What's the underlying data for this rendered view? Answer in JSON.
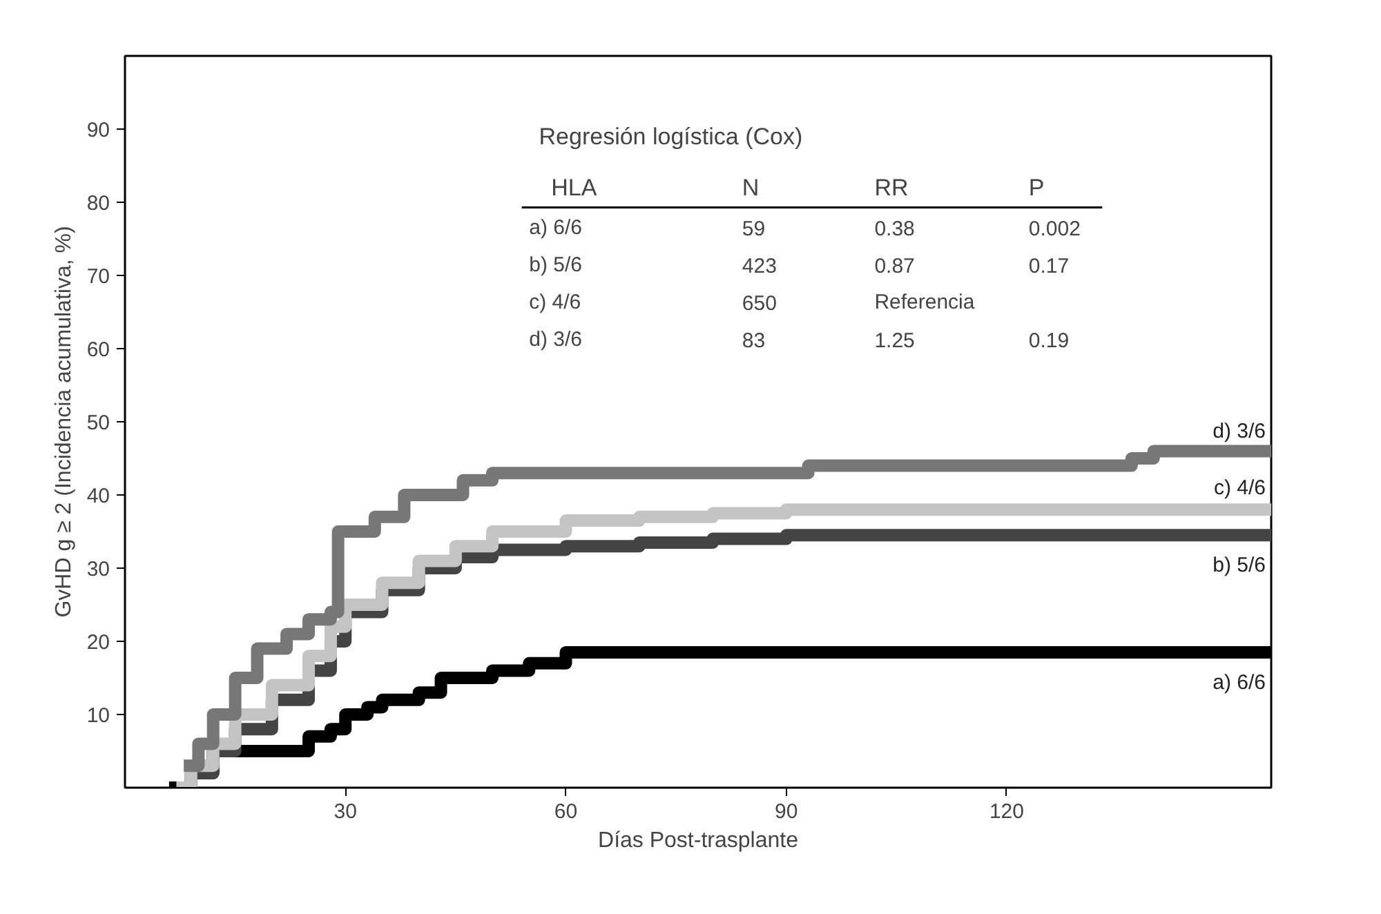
{
  "chart_data": {
    "type": "step",
    "xlabel": "Días Post-trasplante",
    "ylabel": "GvHD g ≥ 2 (Incidencia acumulativa, %)",
    "xlim": [
      0,
      156
    ],
    "ylim": [
      0,
      100
    ],
    "xticks": [
      30,
      60,
      90,
      120
    ],
    "yticks": [
      10,
      20,
      30,
      40,
      50,
      60,
      70,
      80,
      90
    ],
    "grid": false,
    "line_style": "solid",
    "marker": "none",
    "annotations": [
      "Regresión logística (Cox)",
      "HLA",
      "N",
      "RR",
      "P",
      "a) 6/6",
      "59",
      "0.38",
      "0.002",
      "b) 5/6",
      "423",
      "0.87",
      "0.17",
      "c) 4/6",
      "650",
      "Referencia",
      "d) 3/6",
      "83",
      "1.25",
      "0.19"
    ],
    "series": [
      {
        "name": "a) 6/6",
        "color": "#000000",
        "x": [
          6,
          9,
          12,
          22,
          25,
          28,
          30,
          33,
          35,
          40,
          43,
          48,
          50,
          55,
          58,
          60,
          156
        ],
        "values": [
          0,
          2,
          5,
          5,
          7,
          8,
          10,
          11,
          12,
          13,
          15,
          15,
          16,
          17,
          17,
          18.5,
          18.5
        ]
      },
      {
        "name": "b) 5/6",
        "color": "#444444",
        "x": [
          7,
          9,
          12,
          15,
          20,
          25,
          28,
          30,
          35,
          40,
          45,
          50,
          60,
          70,
          80,
          90,
          156
        ],
        "values": [
          0,
          2,
          5,
          8,
          12,
          16,
          20,
          24,
          27,
          30,
          31.5,
          32.5,
          33,
          33.5,
          34,
          34.5,
          34.5
        ]
      },
      {
        "name": "c) 4/6",
        "color": "#c4c4c4",
        "x": [
          7,
          9,
          12,
          15,
          20,
          25,
          28,
          30,
          35,
          40,
          45,
          50,
          60,
          70,
          80,
          90,
          156
        ],
        "values": [
          0,
          3,
          6,
          10,
          14,
          18,
          22,
          25,
          28,
          31,
          33,
          35,
          36.5,
          37,
          37.5,
          38,
          38.5
        ]
      },
      {
        "name": "d) 3/6",
        "color": "#777777",
        "x": [
          8,
          10,
          12,
          15,
          18,
          22,
          25,
          28,
          29,
          34,
          38,
          46,
          50,
          93,
          137,
          140,
          156
        ],
        "values": [
          3,
          6,
          10,
          15,
          19,
          21,
          23,
          24,
          35,
          37,
          40,
          42,
          43,
          44,
          45,
          46,
          46
        ]
      }
    ]
  }
}
